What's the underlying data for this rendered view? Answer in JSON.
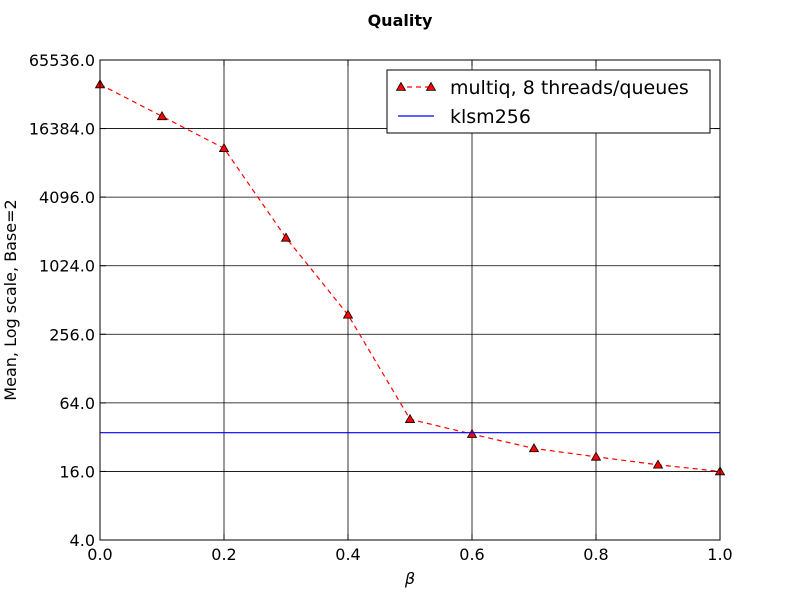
{
  "chart_data": {
    "type": "line",
    "title": "Quality",
    "xlabel": "β",
    "ylabel": "Mean, Log scale, Base=2",
    "y_scale": "log2",
    "xlim": [
      0.0,
      1.0
    ],
    "ylim": [
      4.0,
      65536.0
    ],
    "x_ticks": [
      "0.0",
      "0.2",
      "0.4",
      "0.6",
      "0.8",
      "1.0"
    ],
    "y_ticks": [
      "4.0",
      "16.0",
      "64.0",
      "256.0",
      "1024.0",
      "4096.0",
      "16384.0",
      "65536.0"
    ],
    "grid": true,
    "legend_position": "top-right",
    "series": [
      {
        "name": "multiq, 8 threads/queues",
        "color": "#ff0000",
        "line_style": "dashed",
        "marker": "triangle-up",
        "x": [
          0.0,
          0.1,
          0.2,
          0.3,
          0.4,
          0.5,
          0.6,
          0.7,
          0.8,
          0.9,
          1.0
        ],
        "y": [
          40000,
          21000,
          11000,
          1800,
          380,
          46,
          34,
          25.5,
          21.5,
          18.3,
          16.0
        ]
      },
      {
        "name": "klsm256",
        "color": "#0000ff",
        "line_style": "solid",
        "marker": "none",
        "x": [
          0.0,
          1.0
        ],
        "y": [
          35,
          35
        ]
      }
    ]
  }
}
